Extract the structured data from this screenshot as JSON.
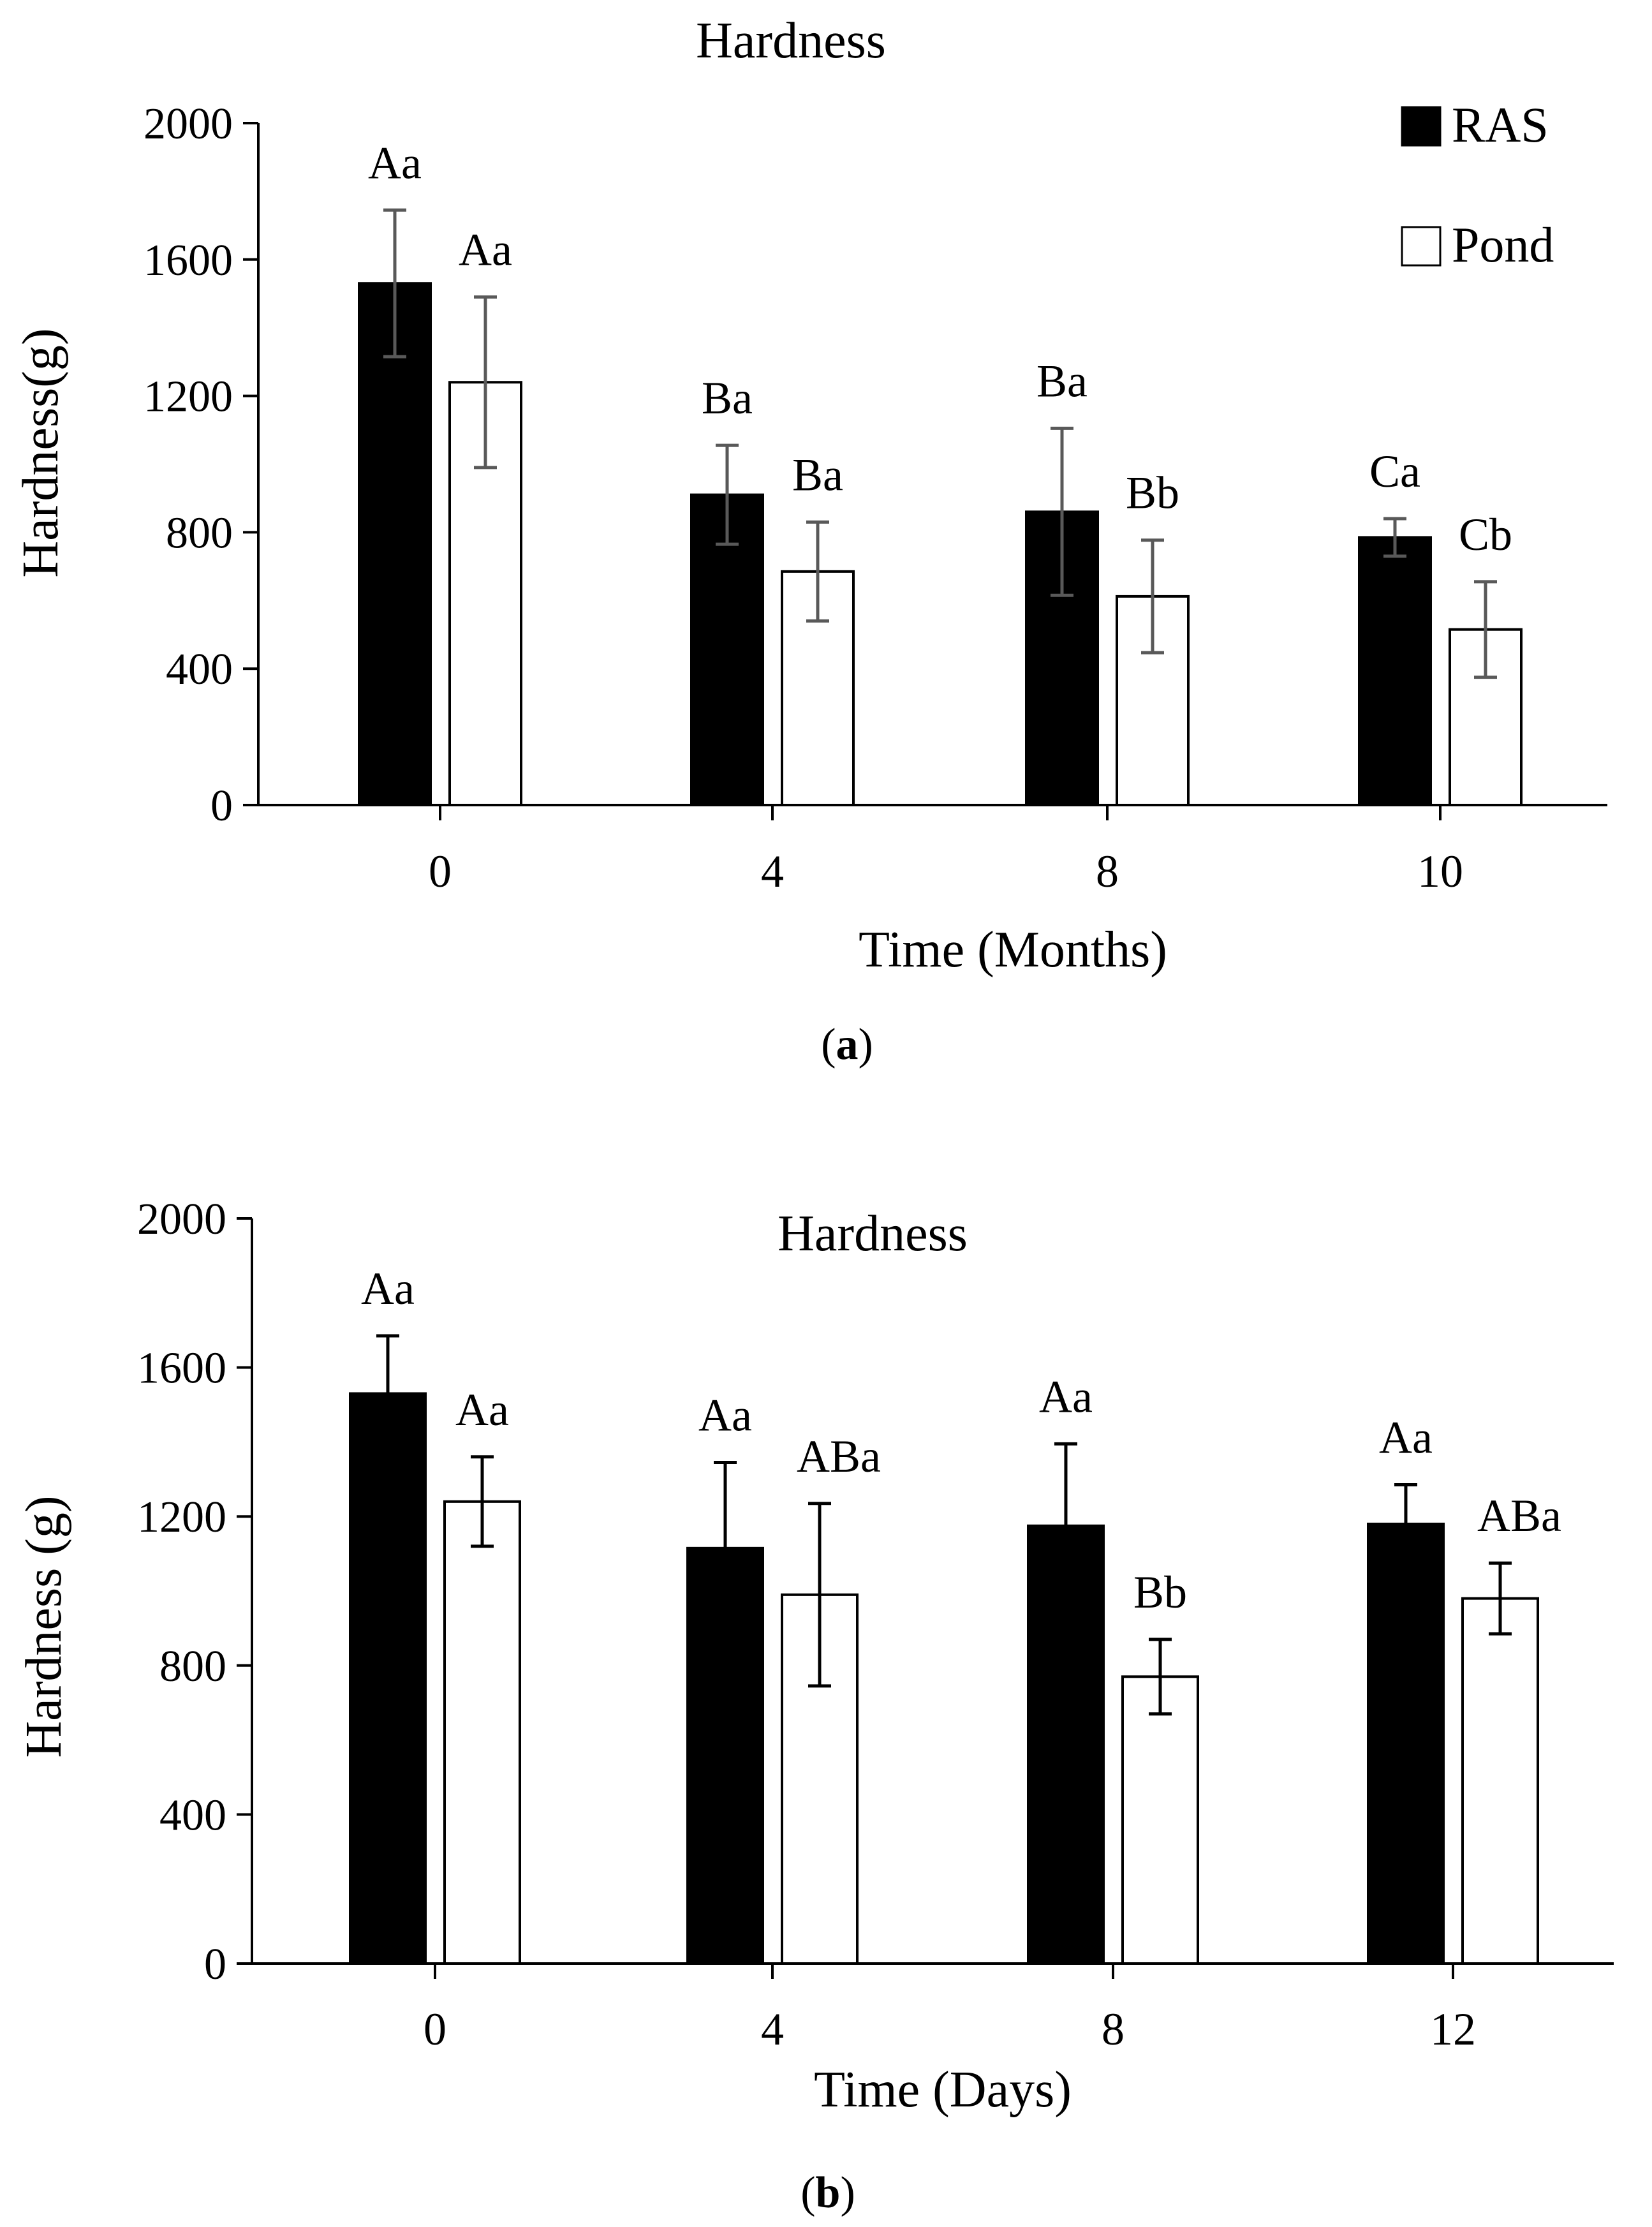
{
  "chart_data": [
    {
      "type": "bar",
      "panel_label": "a",
      "title": "Hardness",
      "xlabel": "Time (Months)",
      "ylabel": "Hardness(g)",
      "categories": [
        "0",
        "4",
        "8",
        "10"
      ],
      "ylim": [
        0,
        2000
      ],
      "yticks": [
        "0",
        "400",
        "800",
        "1200",
        "1600",
        "2000"
      ],
      "error_color": "#595959",
      "legend": {
        "position": "top-right",
        "entries": [
          "RAS",
          "Pond"
        ]
      },
      "series": [
        {
          "name": "RAS",
          "color": "#000000",
          "values": [
            1530,
            910,
            860,
            785
          ],
          "errors": [
            215,
            145,
            245,
            55
          ],
          "labels": [
            "Aa",
            "Ba",
            "Ba",
            "Ca"
          ]
        },
        {
          "name": "Pond",
          "color": "#ffffff",
          "values": [
            1240,
            685,
            612,
            515
          ],
          "errors": [
            250,
            145,
            165,
            140
          ],
          "labels": [
            "Aa",
            "Ba",
            "Bb",
            "Cb"
          ]
        }
      ]
    },
    {
      "type": "bar",
      "panel_label": "b",
      "title": "Hardness",
      "xlabel": "Time (Days)",
      "ylabel": "Hardness (g)",
      "categories": [
        "0",
        "4",
        "8",
        "12"
      ],
      "ylim": [
        0,
        2000
      ],
      "yticks": [
        "0",
        "400",
        "800",
        "1200",
        "1600",
        "2000"
      ],
      "error_color": "#000000",
      "series": [
        {
          "name": "RAS",
          "color": "#000000",
          "values": [
            1530,
            1115,
            1175,
            1180
          ],
          "errors": [
            155,
            230,
            220,
            105
          ],
          "labels": [
            "Aa",
            "Aa",
            "Aa",
            "Aa"
          ]
        },
        {
          "name": "Pond",
          "color": "#ffffff",
          "values": [
            1240,
            990,
            770,
            980
          ],
          "errors": [
            120,
            245,
            100,
            95
          ],
          "labels": [
            "Aa",
            "ABa",
            "Bb",
            "ABa"
          ]
        }
      ]
    }
  ]
}
